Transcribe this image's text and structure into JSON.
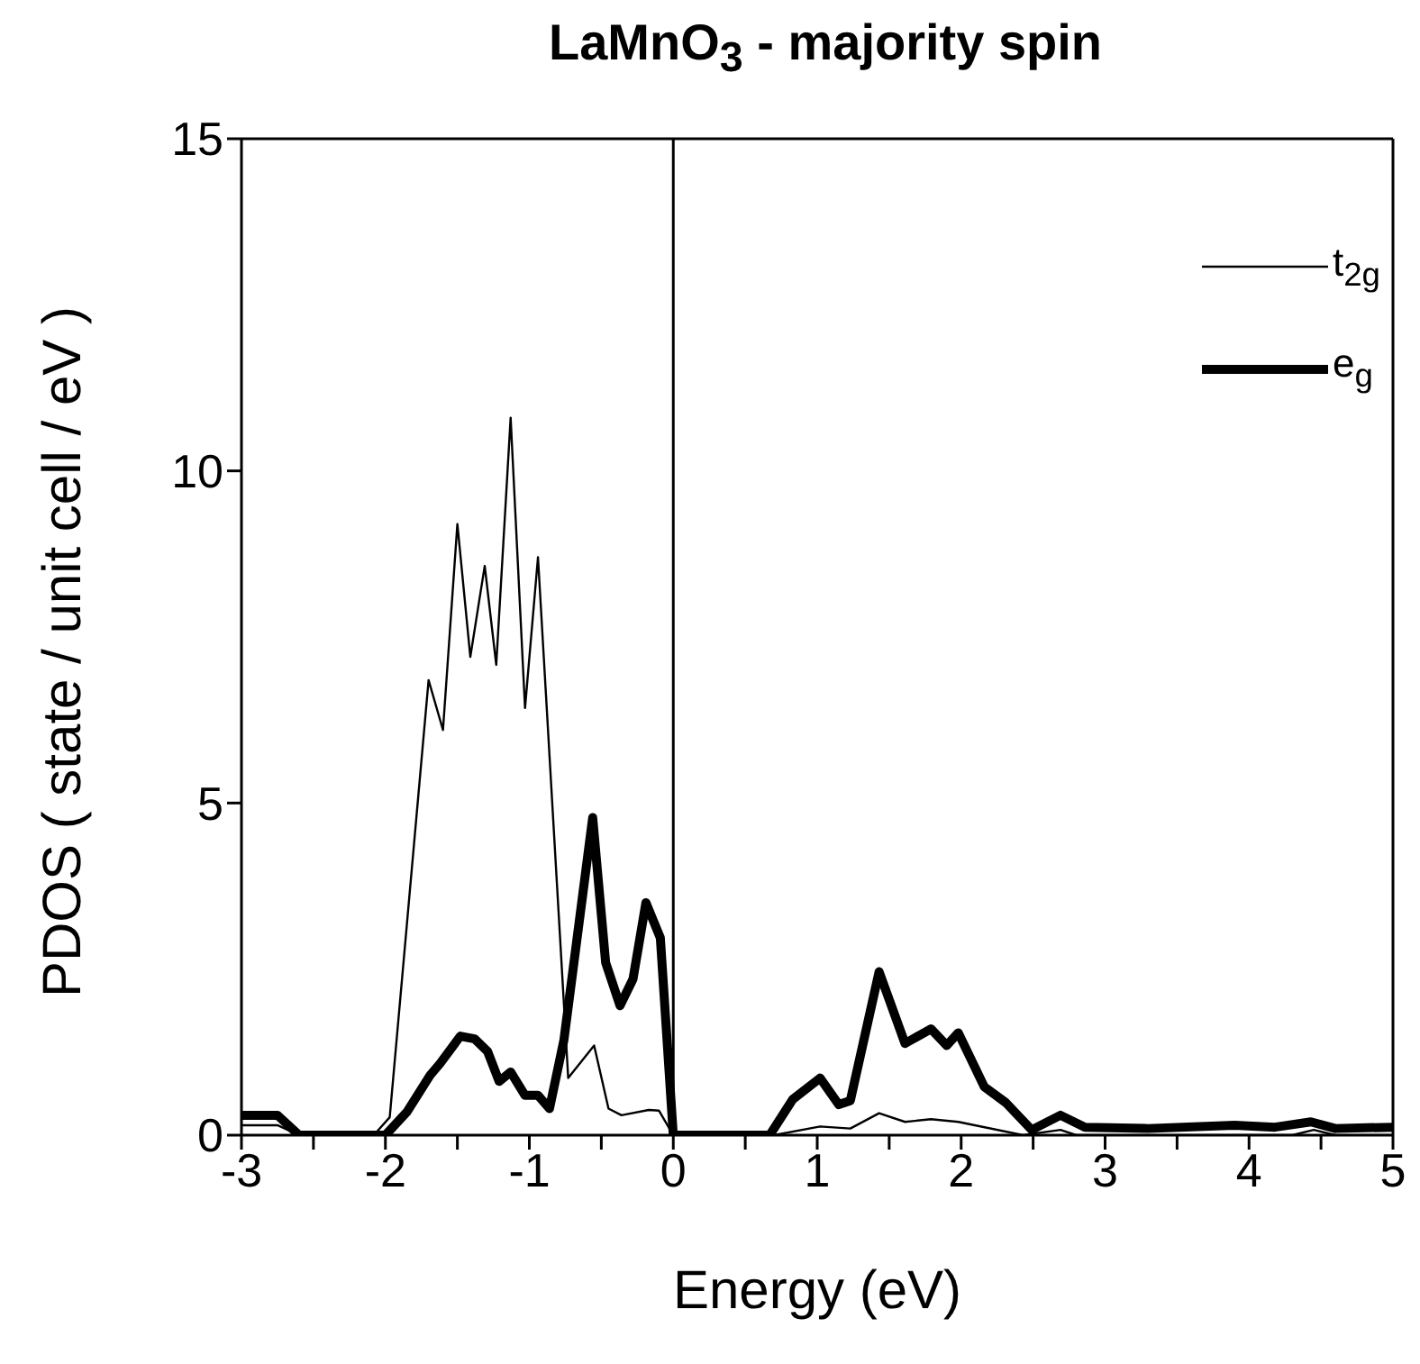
{
  "chart_data": {
    "type": "line",
    "title": "LaMnO$_{3}$ - majority spin",
    "xlabel": "Energy (eV)",
    "ylabel": "PDOS ( state / unit cell / eV )",
    "xlim": [
      -3,
      5
    ],
    "xticks": [
      -3,
      {
        "value": -2.5,
        "label": null
      },
      -2,
      {
        "value": -1.5,
        "label": null
      },
      -1,
      {
        "value": -0.5,
        "label": null
      },
      0,
      {
        "value": 0.5,
        "label": null
      },
      1,
      {
        "value": 1.5,
        "label": null
      },
      2,
      {
        "value": 2.5,
        "label": null
      },
      3,
      {
        "value": 3.5,
        "label": null
      },
      4,
      {
        "value": 4.5,
        "label": null
      },
      5
    ],
    "ylim": [
      0,
      15
    ],
    "yticks": [
      0,
      5,
      10,
      15
    ],
    "legend": "top right",
    "marker": "none",
    "line_style": "solid",
    "ref_lines": [
      {
        "axis": "x",
        "value": 0,
        "color": "#000000"
      }
    ],
    "series": [
      {
        "name": "t$_{2g}$",
        "color": "#000000",
        "x": [
          -3,
          -2.75,
          -2.6,
          -2.06,
          -1.97,
          -1.7,
          -1.6,
          -1.5,
          -1.41,
          -1.31,
          -1.23,
          -1.13,
          -1.03,
          -0.94,
          -0.73,
          -0.55,
          -0.45,
          -0.36,
          -0.17,
          -0.1,
          0,
          0.7,
          1.02,
          1.23,
          1.43,
          1.61,
          1.79,
          1.98,
          2.43,
          2.69,
          2.8,
          4.3,
          4.45,
          4.6,
          5
        ],
        "values": [
          0.15,
          0.15,
          0,
          0.05,
          0.27,
          6.85,
          6.1,
          9.2,
          7.2,
          8.57,
          7.08,
          10.8,
          6.43,
          8.7,
          0.86,
          1.35,
          0.4,
          0.3,
          0.38,
          0.37,
          0,
          0,
          0.13,
          0.1,
          0.33,
          0.2,
          0.24,
          0.2,
          0,
          0.08,
          0,
          0,
          0.08,
          0,
          0
        ]
      },
      {
        "name": "e$_{g}$",
        "color": "#000000",
        "x": [
          -3,
          -2.75,
          -2.6,
          -2.0,
          -1.85,
          -1.69,
          -1.62,
          -1.48,
          -1.38,
          -1.29,
          -1.21,
          -1.13,
          -1.03,
          -0.94,
          -0.86,
          -0.76,
          -0.56,
          -0.47,
          -0.37,
          -0.28,
          -0.19,
          -0.09,
          0,
          0.67,
          0.83,
          1.02,
          1.15,
          1.23,
          1.43,
          1.61,
          1.79,
          1.9,
          1.98,
          2.16,
          2.31,
          2.49,
          2.69,
          2.86,
          3.3,
          3.9,
          4.18,
          4.43,
          4.6,
          5
        ],
        "values": [
          0.3,
          0.3,
          0,
          0,
          0.35,
          0.9,
          1.08,
          1.49,
          1.45,
          1.26,
          0.81,
          0.95,
          0.6,
          0.6,
          0.4,
          1.43,
          4.78,
          2.6,
          1.95,
          2.35,
          3.5,
          2.97,
          0,
          0,
          0.54,
          0.86,
          0.46,
          0.52,
          2.46,
          1.38,
          1.6,
          1.35,
          1.54,
          0.73,
          0.49,
          0.08,
          0.3,
          0.12,
          0.1,
          0.15,
          0.12,
          0.2,
          0.1,
          0.12
        ]
      }
    ]
  }
}
